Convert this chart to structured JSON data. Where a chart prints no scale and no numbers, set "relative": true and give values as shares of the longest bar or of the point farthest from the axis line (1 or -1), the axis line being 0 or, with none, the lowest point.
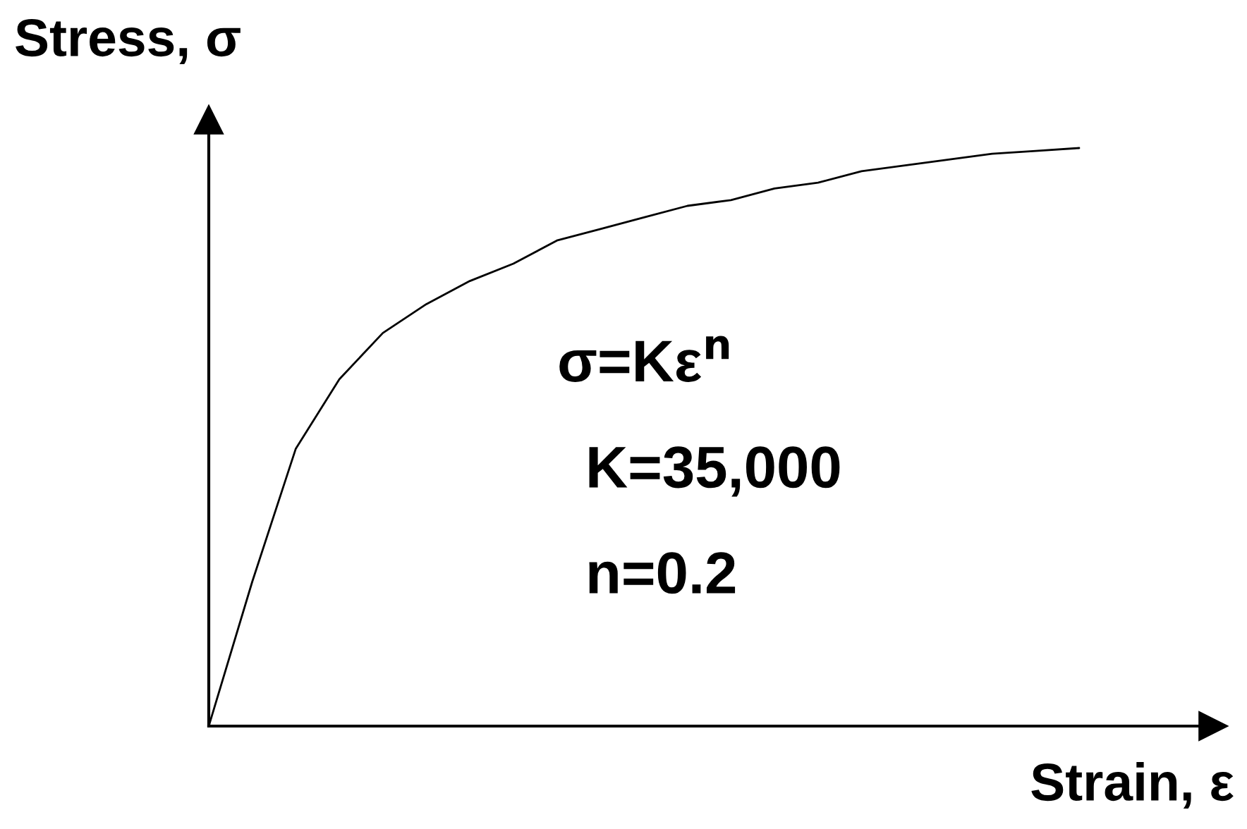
{
  "chart_data": {
    "type": "line",
    "relative": true,
    "xlabel": "Strain, ε",
    "ylabel": "Stress, σ",
    "annotations": [
      "σ=Kε$^{n}$",
      "K=35,000",
      "n=0.2"
    ],
    "categories": [
      null,
      null,
      null,
      null,
      null,
      null,
      null,
      null,
      null,
      null,
      null,
      null,
      null,
      null,
      null,
      null,
      null,
      null,
      null,
      null,
      null
    ],
    "series": [
      {
        "color": "#000000",
        "values": [
          0,
          0.25,
          0.48,
          0.6,
          0.68,
          0.73,
          0.77,
          0.8,
          0.84,
          0.86,
          0.88,
          0.9,
          0.91,
          0.93,
          0.94,
          0.96,
          0.97,
          0.98,
          0.99,
          0.995,
          1.0
        ]
      }
    ],
    "legend": false,
    "marker": "none",
    "line_style": "solid"
  }
}
